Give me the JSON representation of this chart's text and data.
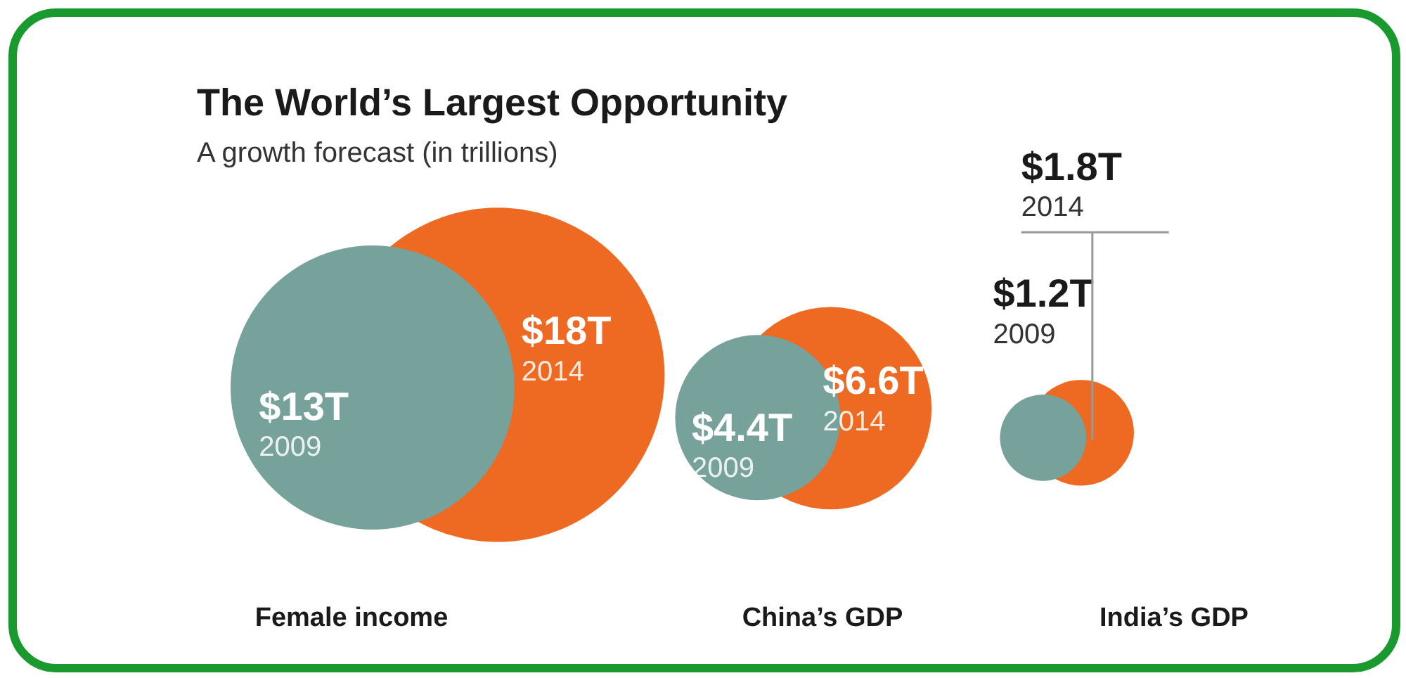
{
  "chart_data": {
    "type": "other",
    "title": "The World’s Largest Opportunity",
    "subtitle": "A growth forecast (in trillions)",
    "categories": [
      "Female income",
      "China’s GDP",
      "India’s GDP"
    ],
    "series": [
      {
        "name": "2009",
        "color": "#77a29c",
        "values": [
          13,
          4.4,
          1.2
        ],
        "value_labels": [
          "$13T",
          "$4.4T",
          "$1.2T"
        ]
      },
      {
        "name": "2014",
        "color": "#ee6a23",
        "values": [
          18,
          6.6,
          1.8
        ],
        "value_labels": [
          "$18T",
          "$6.6T",
          "$1.8T"
        ]
      }
    ]
  }
}
